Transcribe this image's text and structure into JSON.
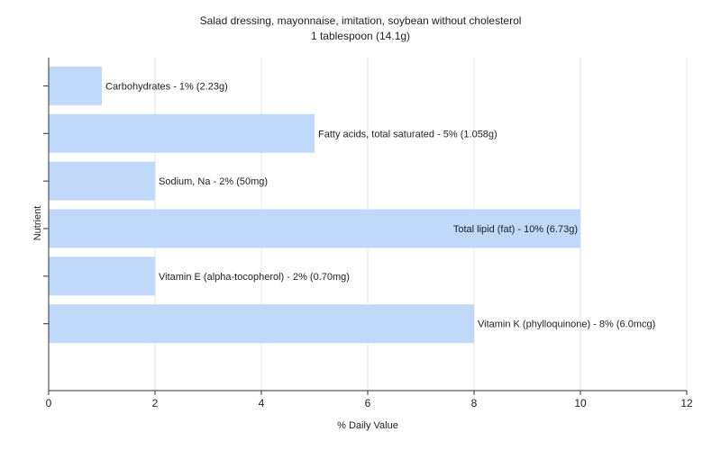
{
  "chart_data": {
    "type": "bar",
    "orientation": "horizontal",
    "title": "Salad dressing, mayonnaise, imitation, soybean without cholesterol",
    "subtitle": "1 tablespoon (14.1g)",
    "xlabel": "% Daily Value",
    "ylabel": "Nutrient",
    "xlim": [
      0,
      12
    ],
    "xticks": [
      0,
      2,
      4,
      6,
      8,
      10,
      12
    ],
    "grid": true,
    "categories": [
      "Carbohydrates",
      "Fatty acids, total saturated",
      "Sodium, Na",
      "Total lipid (fat)",
      "Vitamin E (alpha-tocopherol)",
      "Vitamin K (phylloquinone)"
    ],
    "values": [
      1,
      5,
      2,
      10,
      2,
      8
    ],
    "labels": [
      "Carbohydrates - 1% (2.23g)",
      "Fatty acids, total saturated - 5% (1.058g)",
      "Sodium, Na - 2% (50mg)",
      "Total lipid (fat) - 10% (6.73g)",
      "Vitamin E (alpha-tocopherol) - 2% (0.70mg)",
      "Vitamin K (phylloquinone) - 8% (6.0mcg)"
    ],
    "bar_color": "#c0d9fb",
    "grid_color": "#e4e4e4"
  }
}
